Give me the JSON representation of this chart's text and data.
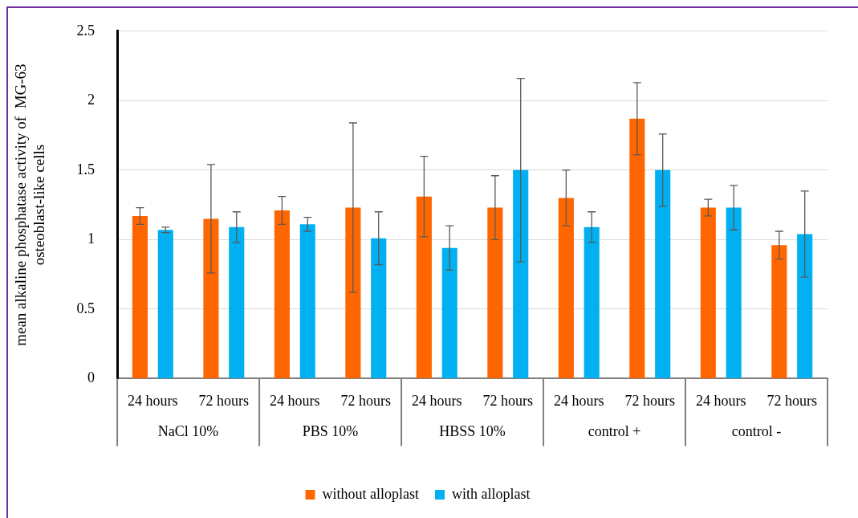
{
  "chart_data": {
    "type": "bar",
    "ylabel": "mean alkaline phosphatase activity of  MG-63\nosteoblast-like cells",
    "categories": [
      "24 hours",
      "72 hours",
      "24 hours",
      "72 hours",
      "24 hours",
      "72 hours",
      "24 hours",
      "72 hours",
      "24 hours",
      "72 hours"
    ],
    "annotations": [
      "NaCl 10%",
      "PBS 10%",
      "HBSS 10%",
      "control +",
      "control -"
    ],
    "series": [
      {
        "name": "without alloplast",
        "color": "#ff6600",
        "values": [
          1.17,
          1.15,
          1.21,
          1.23,
          1.31,
          1.23,
          1.3,
          1.87,
          1.23,
          0.96
        ],
        "errors": [
          0.06,
          0.39,
          0.1,
          0.61,
          0.29,
          0.23,
          0.2,
          0.26,
          0.06,
          0.1
        ]
      },
      {
        "name": "with alloplast",
        "color": "#00b0f0",
        "values": [
          1.07,
          1.09,
          1.11,
          1.01,
          0.94,
          1.5,
          1.09,
          1.5,
          1.23,
          1.04
        ],
        "errors": [
          0.02,
          0.11,
          0.05,
          0.19,
          0.16,
          0.66,
          0.11,
          0.26,
          0.16,
          0.31
        ]
      }
    ],
    "ylim": [
      0,
      2.5
    ],
    "yticks": [
      0,
      0.5,
      1,
      1.5,
      2,
      2.5
    ],
    "grid": "y",
    "legend": "bottom"
  }
}
